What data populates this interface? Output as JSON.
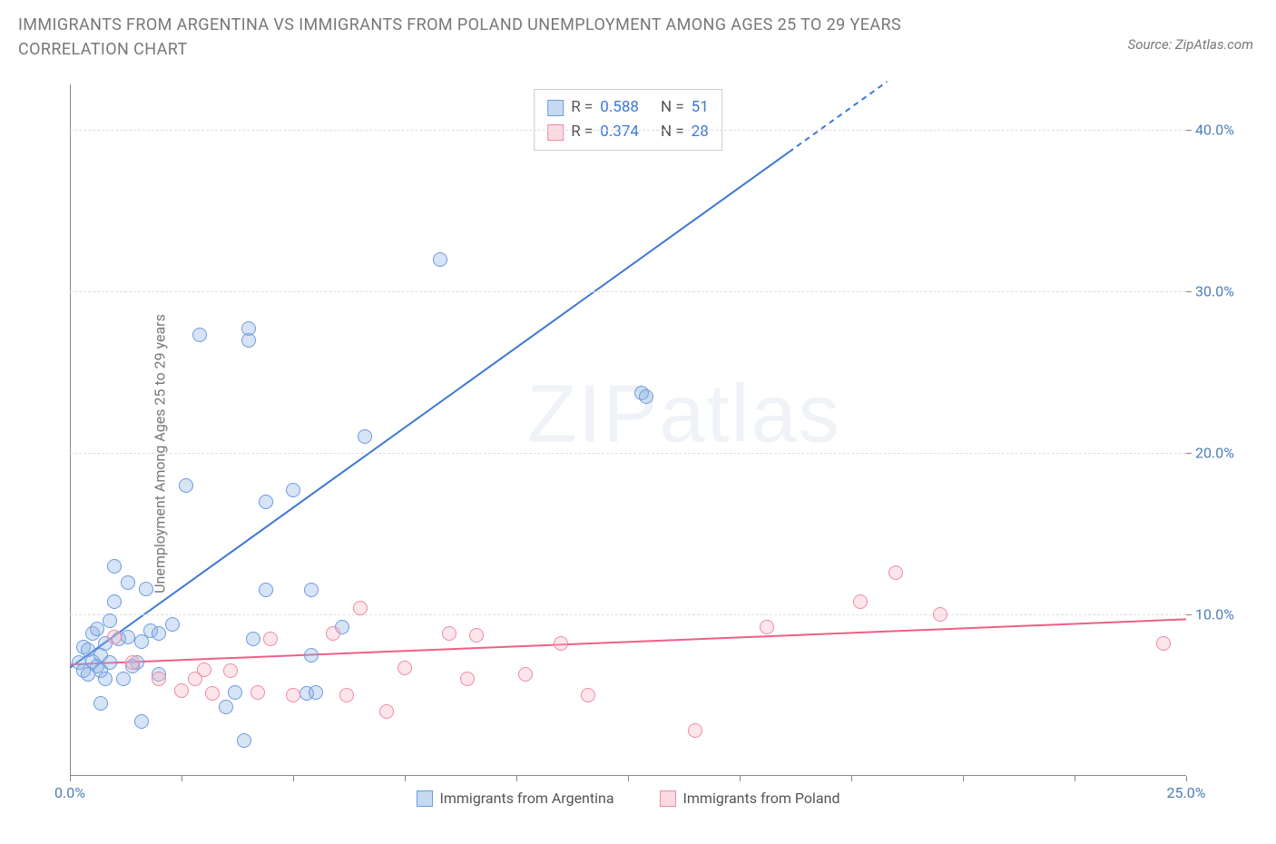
{
  "title": "IMMIGRANTS FROM ARGENTINA VS IMMIGRANTS FROM POLAND UNEMPLOYMENT AMONG AGES 25 TO 29 YEARS CORRELATION CHART",
  "source": "Source: ZipAtlas.com",
  "y_axis_label": "Unemployment Among Ages 25 to 29 years",
  "watermark": "ZIPatlas",
  "chart": {
    "type": "scatter",
    "xlim": [
      0,
      25
    ],
    "ylim": [
      0,
      43
    ],
    "x_ticks": [
      0,
      2.5,
      5,
      7.5,
      10,
      12.5,
      15,
      17.5,
      20,
      22.5,
      25
    ],
    "x_tick_labels": {
      "0": "0.0%",
      "25": "25.0%"
    },
    "y_gridlines": [
      10,
      20,
      30,
      40
    ],
    "y_tick_labels": {
      "10": "10.0%",
      "20": "20.0%",
      "30": "30.0%",
      "40": "40.0%"
    },
    "background_color": "#ffffff",
    "grid_color": "#dddddd",
    "axis_color": "#888888",
    "marker_size": 16,
    "series": [
      {
        "name": "Immigrants from Argentina",
        "color_fill": "rgba(141,179,226,0.35)",
        "color_stroke": "#6d9be0",
        "R": "0.588",
        "N": "51",
        "trend": {
          "x1": 0,
          "y1": 6.7,
          "x2": 18.3,
          "y2": 43,
          "dash_from_x": 16.1,
          "stroke": "#3d78d6",
          "stroke_width": 2
        },
        "points": [
          [
            0.2,
            7.0
          ],
          [
            0.3,
            8.0
          ],
          [
            0.3,
            6.5
          ],
          [
            0.4,
            7.8
          ],
          [
            0.4,
            6.3
          ],
          [
            0.5,
            8.8
          ],
          [
            0.5,
            7.1
          ],
          [
            0.6,
            6.8
          ],
          [
            0.6,
            9.1
          ],
          [
            0.7,
            7.5
          ],
          [
            0.7,
            4.5
          ],
          [
            0.7,
            6.5
          ],
          [
            0.8,
            8.2
          ],
          [
            0.8,
            6.0
          ],
          [
            0.9,
            9.6
          ],
          [
            0.9,
            7.0
          ],
          [
            1.0,
            10.8
          ],
          [
            1.0,
            13.0
          ],
          [
            1.1,
            8.5
          ],
          [
            1.2,
            6.0
          ],
          [
            1.3,
            12.0
          ],
          [
            1.3,
            8.6
          ],
          [
            1.5,
            7.0
          ],
          [
            1.6,
            8.3
          ],
          [
            1.7,
            11.6
          ],
          [
            1.8,
            9.0
          ],
          [
            2.0,
            8.8
          ],
          [
            2.3,
            9.4
          ],
          [
            2.0,
            6.3
          ],
          [
            1.6,
            3.4
          ],
          [
            2.6,
            18.0
          ],
          [
            2.9,
            27.3
          ],
          [
            3.5,
            4.3
          ],
          [
            3.7,
            5.2
          ],
          [
            3.9,
            2.2
          ],
          [
            4.0,
            27.7
          ],
          [
            4.0,
            27.0
          ],
          [
            4.1,
            8.5
          ],
          [
            4.4,
            17.0
          ],
          [
            4.4,
            11.5
          ],
          [
            5.0,
            17.7
          ],
          [
            5.3,
            5.1
          ],
          [
            5.4,
            11.5
          ],
          [
            5.4,
            7.5
          ],
          [
            5.5,
            5.2
          ],
          [
            6.1,
            9.2
          ],
          [
            6.6,
            21.0
          ],
          [
            8.3,
            32.0
          ],
          [
            12.8,
            23.7
          ],
          [
            12.9,
            23.5
          ],
          [
            1.4,
            6.8
          ]
        ]
      },
      {
        "name": "Immigrants from Poland",
        "color_fill": "rgba(248,182,199,0.35)",
        "color_stroke": "#ef8aa4",
        "R": "0.374",
        "N": "28",
        "trend": {
          "x1": 0,
          "y1": 6.9,
          "x2": 25,
          "y2": 9.7,
          "stroke": "#ef5f86",
          "stroke_width": 2
        },
        "points": [
          [
            1.0,
            8.6
          ],
          [
            1.4,
            7.0
          ],
          [
            2.0,
            6.0
          ],
          [
            2.5,
            5.3
          ],
          [
            3.0,
            6.6
          ],
          [
            3.2,
            5.1
          ],
          [
            3.6,
            6.5
          ],
          [
            4.2,
            5.2
          ],
          [
            4.5,
            8.5
          ],
          [
            5.0,
            5.0
          ],
          [
            5.9,
            8.8
          ],
          [
            6.2,
            5.0
          ],
          [
            6.5,
            10.4
          ],
          [
            7.1,
            4.0
          ],
          [
            7.5,
            6.7
          ],
          [
            8.5,
            8.8
          ],
          [
            8.9,
            6.0
          ],
          [
            9.1,
            8.7
          ],
          [
            10.2,
            6.3
          ],
          [
            11.0,
            8.2
          ],
          [
            11.6,
            5.0
          ],
          [
            14.0,
            2.8
          ],
          [
            15.6,
            9.2
          ],
          [
            17.7,
            10.8
          ],
          [
            18.5,
            12.6
          ],
          [
            19.5,
            10.0
          ],
          [
            24.5,
            8.2
          ],
          [
            2.8,
            6.0
          ]
        ]
      }
    ]
  },
  "legend_top": [
    {
      "swatch": "blue",
      "R": "0.588",
      "N": "51"
    },
    {
      "swatch": "pink",
      "R": "0.374",
      "N": "28"
    }
  ],
  "legend_bottom": [
    {
      "swatch": "blue",
      "label": "Immigrants from Argentina"
    },
    {
      "swatch": "pink",
      "label": "Immigrants from Poland"
    }
  ]
}
